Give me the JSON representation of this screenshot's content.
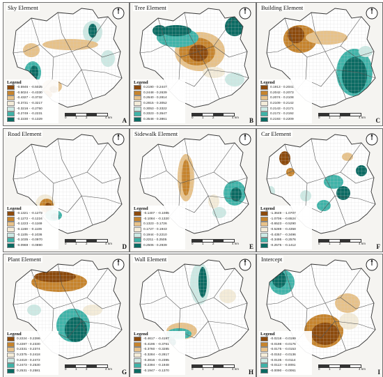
{
  "colors": {
    "brown_dark": "#8c4a0c",
    "brown": "#c6842d",
    "tan": "#e7c28a",
    "light": "#f4ecd9",
    "mint": "#cde9e4",
    "teal": "#3fb3a8",
    "teal_dark": "#0b6b63",
    "background": "#f5f4f1",
    "boundary": "#555555"
  },
  "legend_title": "Legend",
  "scale_labels": [
    "0",
    "1",
    "2",
    "4"
  ],
  "scale_unit": "km",
  "compass_label": "N",
  "panels": [
    {
      "id": "A",
      "title": "Sky Element",
      "letter": "A",
      "legend": [
        "-0.5946 - -0.5025",
        "-0.5024 - -0.4330",
        "-0.4327 - -0.3732",
        "-0.3731 - -0.3217",
        "-0.3216 - -0.2750",
        "-0.2749 - -0.2231",
        "-0.2230 - -0.1329"
      ]
    },
    {
      "id": "B",
      "title": "Tree Element",
      "letter": "B",
      "legend": [
        "0.2190 - 0.2447",
        "0.2448 - 0.2639",
        "0.2640 - 0.2814",
        "0.2815 - 0.3052",
        "0.3053 - 0.3322",
        "0.3323 - 0.3547",
        "0.3548 - 0.3861"
      ]
    },
    {
      "id": "C",
      "title": "Building Element",
      "letter": "C",
      "legend": [
        "0.1913 - 0.2041",
        "0.2042 - 0.2073",
        "0.2074 - 0.2108",
        "0.2109 - 0.2142",
        "0.2143 - 0.2171",
        "0.2172 - 0.2192",
        "0.2193 - 0.2209"
      ]
    },
    {
      "id": "D",
      "title": "Road Element",
      "letter": "D",
      "legend": [
        "-0.1321 - -0.1273",
        "-0.1272 - -0.1224",
        "-0.1223 - -0.1169",
        "-0.1168 - -0.1106",
        "-0.1105 - -0.1036",
        "-0.1035 - -0.0970",
        "-0.0969 - -0.0890"
      ]
    },
    {
      "id": "E",
      "title": "Sidewalk Element",
      "letter": "E",
      "legend": [
        "-0.1407 - -0.1085",
        "-0.1084 - -0.1320",
        "0.1323 - 0.1726",
        "0.1727 - 0.1943",
        "0.1944 - 0.2210",
        "0.2211 - 0.2505",
        "0.2506 - 0.2939"
      ]
    },
    {
      "id": "F",
      "title": "Car Element",
      "letter": "F",
      "legend": [
        "-1.3649 - -1.0707",
        "-1.0706 - -0.6524",
        "-0.6523 - -0.5290",
        "-0.5289 - -0.4358",
        "-0.4357 - -0.3496",
        "-0.3495 - -0.2576",
        "-0.2575 - -0.1412"
      ]
    },
    {
      "id": "G",
      "title": "Plant Element",
      "letter": "G",
      "legend": [
        "0.2224 - 0.2286",
        "0.2287 - 0.2330",
        "0.2331 - 0.2374",
        "0.2375 - 0.2418",
        "0.2419 - 0.2472",
        "0.2473 - 0.2530",
        "0.2531 - 0.2581"
      ]
    },
    {
      "id": "H",
      "title": "Wall Element",
      "letter": "H",
      "legend": [
        "-0.4617 - -0.4197",
        "-0.4196 - -0.3761",
        "-0.3760 - -0.3285",
        "-0.3284 - -0.2817",
        "-0.2816 - -0.2395",
        "-0.2394 - -0.1948",
        "-0.1947 - -0.1370"
      ]
    },
    {
      "id": "I",
      "title": "Intercept",
      "letter": "I",
      "legend": [
        "-0.0218 - -0.0199",
        "-0.0198 - -0.0176",
        "-0.0175 - -0.0153",
        "-0.0152 - -0.0136",
        "-0.0135 - -0.0114",
        "-0.0113 - -0.0091",
        "-0.0090 - -0.0061"
      ]
    }
  ]
}
